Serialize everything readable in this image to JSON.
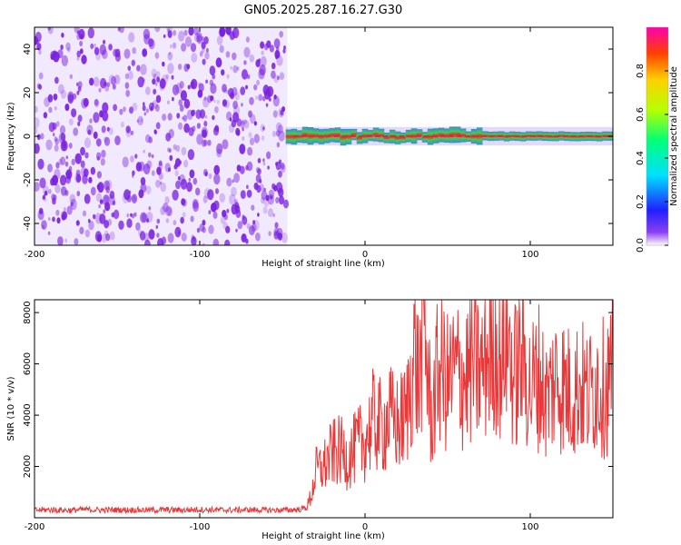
{
  "title": "GN05.2025.287.16.27.G30",
  "chart_data": [
    {
      "type": "heatmap",
      "xlabel": "Height of straight line (km)",
      "ylabel": "Frequency (Hz)",
      "xlim": [
        -200,
        150
      ],
      "ylim": [
        -50,
        50
      ],
      "xticks": [
        -200,
        -100,
        0,
        100
      ],
      "yticks": [
        -40,
        -20,
        0,
        20,
        40
      ],
      "noise_region_x": [
        -200,
        -47
      ],
      "signal_band": {
        "x_start": -48,
        "x_end": 150,
        "center_freq": 0,
        "half_width": 3
      },
      "colorbar": {
        "label": "Normalized spectral amplitude",
        "range": [
          0.0,
          1.0
        ],
        "ticks": [
          0.0,
          0.2,
          0.4,
          0.6,
          0.8
        ],
        "tick_labels": [
          "0.0",
          "0.2",
          "0.4",
          "0.6",
          "0.8"
        ]
      },
      "colors": {
        "noise": "#7a1fe0",
        "band_edge": "#2f7dd6",
        "band_mid": "#3fd24a",
        "band_core": "#e8233a"
      }
    },
    {
      "type": "line",
      "xlabel": "Height of straight line (km)",
      "ylabel": "SNR (10 * v/v)",
      "xlim": [
        -200,
        150
      ],
      "ylim": [
        0,
        8500
      ],
      "xticks": [
        -200,
        -100,
        0,
        100
      ],
      "yticks": [
        2000,
        4000,
        6000,
        8000
      ],
      "color": "#e8393a",
      "series": [
        {
          "name": "SNR",
          "x": [
            -200,
            -190,
            -180,
            -170,
            -160,
            -150,
            -140,
            -130,
            -120,
            -110,
            -100,
            -90,
            -80,
            -70,
            -60,
            -50,
            -40,
            -35,
            -32,
            -30,
            -25,
            -20,
            -15,
            -10,
            -5,
            0,
            5,
            10,
            15,
            20,
            25,
            30,
            33,
            35,
            40,
            45,
            50,
            55,
            60,
            65,
            70,
            75,
            80,
            83,
            85,
            90,
            95,
            100,
            105,
            110,
            115,
            120,
            125,
            130,
            135,
            140,
            145,
            150
          ],
          "y": [
            300,
            310,
            290,
            320,
            300,
            310,
            305,
            295,
            310,
            300,
            320,
            305,
            300,
            310,
            300,
            295,
            320,
            400,
            1000,
            1800,
            2000,
            2500,
            2600,
            2300,
            2800,
            3000,
            3800,
            3500,
            3900,
            3600,
            4000,
            6500,
            5000,
            8400,
            3800,
            6000,
            5200,
            5700,
            5400,
            6000,
            5600,
            6600,
            7000,
            5800,
            7800,
            5400,
            6300,
            5000,
            5600,
            4600,
            5400,
            5200,
            4800,
            5200,
            4700,
            5400,
            5000,
            5600
          ]
        }
      ]
    }
  ]
}
